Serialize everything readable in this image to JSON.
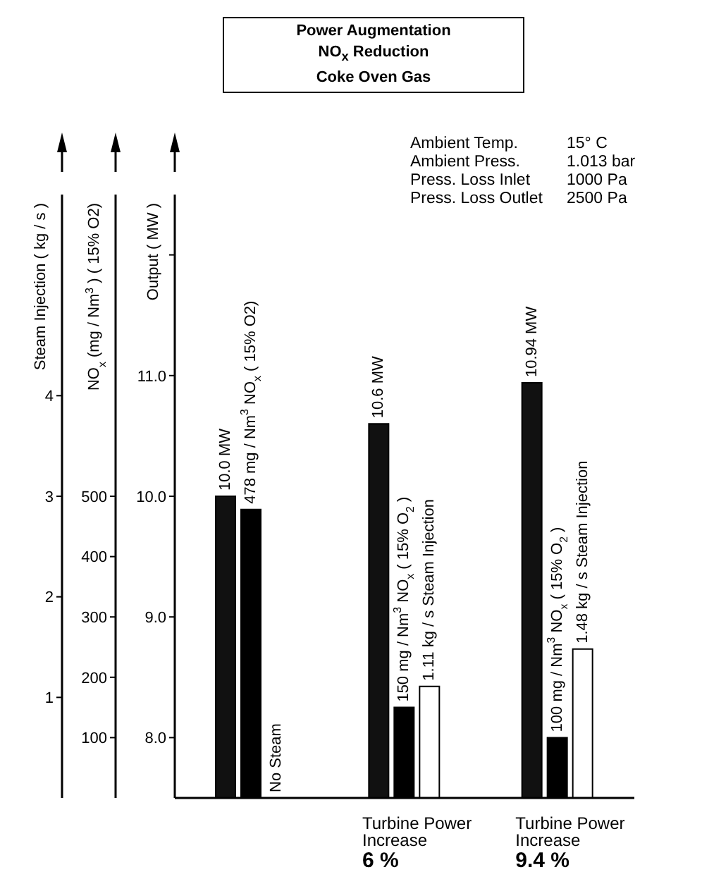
{
  "chart_data": {
    "type": "bar",
    "title": "Power Augmentation\nNO$_{x}$ Reduction\nCoke Oven Gas",
    "categories": [
      null,
      "Turbine Power\nIncrease\n6 %",
      "Turbine Power\nIncrease\n9.4 %"
    ],
    "series": [
      {
        "color": "#111111",
        "axis": "y",
        "values": [
          10.0,
          10.6,
          10.94
        ],
        "value_labels": [
          "10.0 MW",
          "10.6 MW",
          "10.94 MW"
        ]
      },
      {
        "color": "#000000",
        "axis": "y2",
        "values": [
          478,
          150,
          100
        ],
        "value_labels": [
          "478 mg / Nm$^{3}$ NO$_{x}$ ( 15% O2)",
          "150 mg / Nm$^{3}$ NO$_{x}$ ( 15% O$_{2}$ )",
          "100 mg / Nm$^{3}$ NO$_{x}$ ( 15% O$_{2}$ )"
        ]
      },
      {
        "color": "#ffffff",
        "axis": "y3",
        "values": [
          null,
          1.11,
          1.48
        ],
        "value_labels": [
          "No Steam",
          "1.11 kg / s Steam Injection",
          "1.48 kg / s Steam Injection"
        ]
      }
    ],
    "ylabel": "Output ( MW )",
    "ylim": [
      7.5,
      12.5
    ],
    "yticks": [
      {
        "value": 8,
        "label": "8.0"
      },
      {
        "value": 9,
        "label": "9.0"
      },
      {
        "value": 10,
        "label": "10.0"
      },
      {
        "value": 11,
        "label": "11.0"
      },
      {
        "value": 12,
        "label": null
      }
    ],
    "y2label": "NO$_{x}$ (mg / Nm$^{3}$ ) ( 15% O2)",
    "y2lim": [
      0,
      1000
    ],
    "y2ticks": [
      100,
      200,
      300,
      400,
      500
    ],
    "y3label": "Steam Injection ( kg / s )",
    "y3lim": [
      0,
      6
    ],
    "y3ticks": [
      1,
      2,
      3,
      4
    ],
    "annotations": [
      "Ambient Temp.\t15° C",
      "Ambient Press.\t1.013 bar",
      "Press. Loss Inlet\t1000 Pa",
      "Press. Loss Outlet\t2500 Pa"
    ]
  }
}
